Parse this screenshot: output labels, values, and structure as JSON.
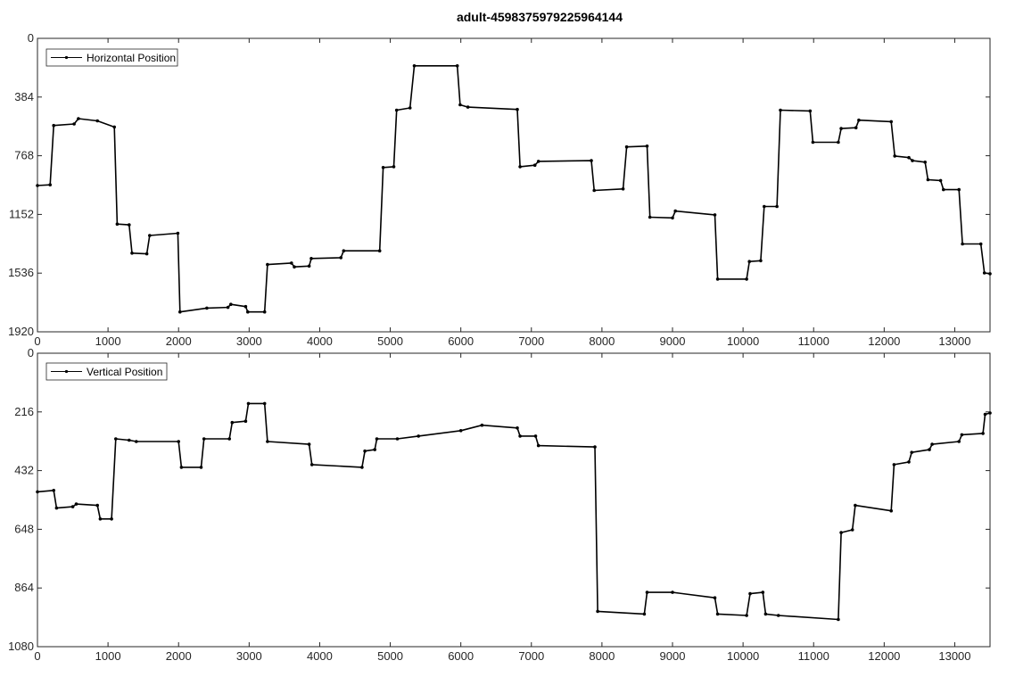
{
  "title": "adult-4598375979225964144",
  "chart_data": [
    {
      "type": "line",
      "series": [
        {
          "name": "Horizontal Position",
          "color": "#000000",
          "points": [
            [
              0,
              963
            ],
            [
              180,
              958
            ],
            [
              230,
              570
            ],
            [
              520,
              560
            ],
            [
              580,
              525
            ],
            [
              850,
              540
            ],
            [
              1090,
              580
            ],
            [
              1130,
              1215
            ],
            [
              1300,
              1220
            ],
            [
              1340,
              1405
            ],
            [
              1550,
              1410
            ],
            [
              1590,
              1290
            ],
            [
              1990,
              1275
            ],
            [
              2020,
              1790
            ],
            [
              2400,
              1765
            ],
            [
              2700,
              1760
            ],
            [
              2740,
              1740
            ],
            [
              2950,
              1755
            ],
            [
              2980,
              1790
            ],
            [
              3220,
              1790
            ],
            [
              3260,
              1480
            ],
            [
              3600,
              1470
            ],
            [
              3640,
              1495
            ],
            [
              3850,
              1490
            ],
            [
              3880,
              1440
            ],
            [
              4300,
              1435
            ],
            [
              4340,
              1390
            ],
            [
              4850,
              1390
            ],
            [
              4900,
              845
            ],
            [
              5050,
              840
            ],
            [
              5090,
              470
            ],
            [
              5280,
              455
            ],
            [
              5340,
              180
            ],
            [
              5950,
              180
            ],
            [
              5990,
              435
            ],
            [
              6100,
              450
            ],
            [
              6800,
              465
            ],
            [
              6840,
              840
            ],
            [
              7050,
              830
            ],
            [
              7100,
              805
            ],
            [
              7850,
              800
            ],
            [
              7890,
              995
            ],
            [
              8300,
              985
            ],
            [
              8350,
              710
            ],
            [
              8640,
              705
            ],
            [
              8680,
              1170
            ],
            [
              9000,
              1175
            ],
            [
              9040,
              1130
            ],
            [
              9600,
              1155
            ],
            [
              9640,
              1575
            ],
            [
              10050,
              1575
            ],
            [
              10090,
              1460
            ],
            [
              10250,
              1455
            ],
            [
              10300,
              1100
            ],
            [
              10480,
              1100
            ],
            [
              10530,
              470
            ],
            [
              10950,
              475
            ],
            [
              10990,
              680
            ],
            [
              11350,
              680
            ],
            [
              11390,
              590
            ],
            [
              11600,
              585
            ],
            [
              11640,
              535
            ],
            [
              12100,
              545
            ],
            [
              12150,
              770
            ],
            [
              12350,
              780
            ],
            [
              12400,
              800
            ],
            [
              12580,
              810
            ],
            [
              12620,
              925
            ],
            [
              12800,
              930
            ],
            [
              12840,
              990
            ],
            [
              13060,
              990
            ],
            [
              13110,
              1345
            ],
            [
              13370,
              1345
            ],
            [
              13420,
              1535
            ],
            [
              13500,
              1540
            ]
          ]
        }
      ],
      "xlim": [
        0,
        13500
      ],
      "ylim": [
        0,
        1920
      ],
      "y_reversed": true,
      "x_ticks": [
        "0",
        "1000",
        "2000",
        "3000",
        "4000",
        "5000",
        "6000",
        "7000",
        "8000",
        "9000",
        "10000",
        "11000",
        "12000",
        "13000"
      ],
      "y_ticks": [
        "0",
        "384",
        "768",
        "1152",
        "1536",
        "1920"
      ],
      "grid": false,
      "legend_position": "top-left"
    },
    {
      "type": "line",
      "series": [
        {
          "name": "Vertical Position",
          "color": "#000000",
          "points": [
            [
              0,
              510
            ],
            [
              230,
              505
            ],
            [
              270,
              570
            ],
            [
              500,
              565
            ],
            [
              550,
              555
            ],
            [
              850,
              560
            ],
            [
              890,
              610
            ],
            [
              1050,
              610
            ],
            [
              1110,
              315
            ],
            [
              1300,
              320
            ],
            [
              1400,
              325
            ],
            [
              2000,
              325
            ],
            [
              2040,
              420
            ],
            [
              2320,
              420
            ],
            [
              2360,
              315
            ],
            [
              2720,
              315
            ],
            [
              2760,
              255
            ],
            [
              2950,
              250
            ],
            [
              2990,
              185
            ],
            [
              3220,
              185
            ],
            [
              3260,
              325
            ],
            [
              3850,
              335
            ],
            [
              3890,
              410
            ],
            [
              4600,
              420
            ],
            [
              4640,
              360
            ],
            [
              4780,
              355
            ],
            [
              4810,
              315
            ],
            [
              5100,
              315
            ],
            [
              5400,
              305
            ],
            [
              6000,
              285
            ],
            [
              6300,
              265
            ],
            [
              6800,
              275
            ],
            [
              6840,
              305
            ],
            [
              7060,
              305
            ],
            [
              7100,
              340
            ],
            [
              7900,
              345
            ],
            [
              7940,
              950
            ],
            [
              8600,
              960
            ],
            [
              8640,
              880
            ],
            [
              9000,
              880
            ],
            [
              9600,
              900
            ],
            [
              9640,
              960
            ],
            [
              10050,
              965
            ],
            [
              10100,
              885
            ],
            [
              10280,
              880
            ],
            [
              10320,
              960
            ],
            [
              10500,
              965
            ],
            [
              11350,
              980
            ],
            [
              11390,
              660
            ],
            [
              11550,
              650
            ],
            [
              11590,
              560
            ],
            [
              12100,
              580
            ],
            [
              12140,
              410
            ],
            [
              12350,
              400
            ],
            [
              12390,
              365
            ],
            [
              12640,
              355
            ],
            [
              12680,
              335
            ],
            [
              13060,
              325
            ],
            [
              13100,
              300
            ],
            [
              13400,
              295
            ],
            [
              13430,
              225
            ],
            [
              13500,
              220
            ]
          ]
        }
      ],
      "xlim": [
        0,
        13500
      ],
      "ylim": [
        0,
        1080
      ],
      "y_reversed": true,
      "x_ticks": [
        "0",
        "1000",
        "2000",
        "3000",
        "4000",
        "5000",
        "6000",
        "7000",
        "8000",
        "9000",
        "10000",
        "11000",
        "12000",
        "13000"
      ],
      "y_ticks": [
        "0",
        "216",
        "432",
        "648",
        "864",
        "1080"
      ],
      "grid": false,
      "legend_position": "top-left"
    }
  ]
}
